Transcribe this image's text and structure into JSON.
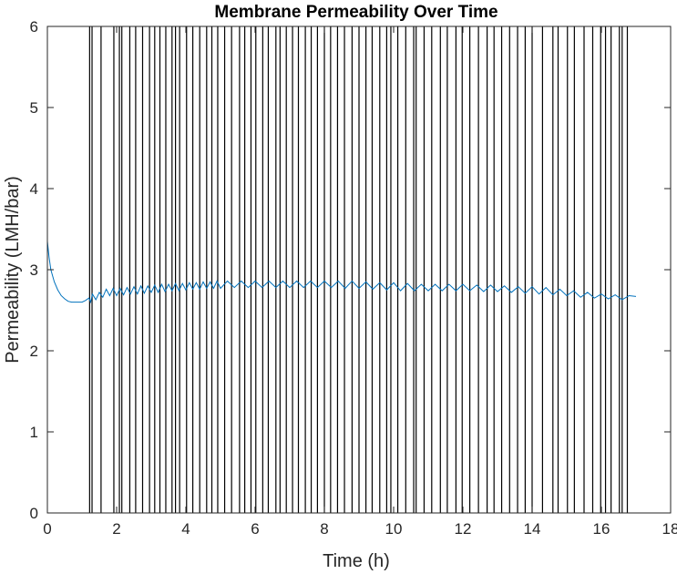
{
  "chart_data": {
    "type": "line",
    "title": "Membrane Permeability Over Time",
    "xlabel": "Time (h)",
    "ylabel": "Permeability (LMH/bar)",
    "xlim": [
      0,
      18
    ],
    "ylim": [
      0,
      6
    ],
    "xticks": [
      "0",
      "2",
      "4",
      "6",
      "8",
      "10",
      "12",
      "14",
      "16",
      "18"
    ],
    "yticks": [
      "0",
      "1",
      "2",
      "3",
      "4",
      "5",
      "6"
    ],
    "grid": false,
    "legend": "none",
    "series": [
      {
        "color": "#0072BD",
        "x": [
          0.0,
          0.05,
          0.1,
          0.2,
          0.3,
          0.4,
          0.5,
          0.6,
          0.7,
          0.8,
          0.9,
          1.0,
          1.1,
          1.2,
          1.25,
          1.3,
          1.4,
          1.5,
          1.6,
          1.7,
          1.8,
          1.9,
          2.0,
          2.1,
          2.2,
          2.3,
          2.4,
          2.5,
          2.6,
          2.7,
          2.8,
          2.9,
          3.0,
          3.1,
          3.2,
          3.3,
          3.4,
          3.5,
          3.6,
          3.7,
          3.8,
          3.9,
          4.0,
          4.1,
          4.2,
          4.3,
          4.4,
          4.5,
          4.6,
          4.7,
          4.8,
          4.9,
          5.0,
          5.2,
          5.4,
          5.6,
          5.8,
          6.0,
          6.2,
          6.4,
          6.6,
          6.8,
          7.0,
          7.2,
          7.4,
          7.6,
          7.8,
          8.0,
          8.2,
          8.4,
          8.6,
          8.8,
          9.0,
          9.2,
          9.4,
          9.6,
          9.8,
          10.0,
          10.2,
          10.4,
          10.6,
          10.8,
          11.0,
          11.2,
          11.4,
          11.6,
          11.8,
          12.0,
          12.2,
          12.4,
          12.6,
          12.8,
          13.0,
          13.2,
          13.4,
          13.6,
          13.8,
          14.0,
          14.2,
          14.4,
          14.6,
          14.8,
          15.0,
          15.2,
          15.4,
          15.6,
          15.8,
          16.0,
          16.2,
          16.4,
          16.6,
          16.8,
          17.0
        ],
        "y": [
          3.35,
          3.15,
          3.0,
          2.85,
          2.75,
          2.68,
          2.64,
          2.61,
          2.6,
          2.6,
          2.6,
          2.6,
          2.62,
          2.65,
          2.6,
          2.7,
          2.63,
          2.72,
          2.66,
          2.76,
          2.68,
          2.77,
          2.68,
          2.77,
          2.69,
          2.78,
          2.7,
          2.79,
          2.7,
          2.8,
          2.71,
          2.8,
          2.72,
          2.81,
          2.72,
          2.82,
          2.73,
          2.82,
          2.74,
          2.83,
          2.74,
          2.83,
          2.75,
          2.84,
          2.76,
          2.84,
          2.76,
          2.85,
          2.77,
          2.85,
          2.77,
          2.86,
          2.77,
          2.86,
          2.78,
          2.86,
          2.78,
          2.86,
          2.78,
          2.86,
          2.78,
          2.86,
          2.78,
          2.86,
          2.78,
          2.86,
          2.78,
          2.86,
          2.78,
          2.86,
          2.77,
          2.86,
          2.77,
          2.85,
          2.76,
          2.84,
          2.75,
          2.84,
          2.74,
          2.83,
          2.74,
          2.82,
          2.74,
          2.82,
          2.74,
          2.82,
          2.74,
          2.82,
          2.74,
          2.81,
          2.73,
          2.81,
          2.73,
          2.8,
          2.72,
          2.79,
          2.71,
          2.79,
          2.7,
          2.78,
          2.69,
          2.76,
          2.68,
          2.74,
          2.66,
          2.72,
          2.65,
          2.7,
          2.64,
          2.69,
          2.63,
          2.68,
          2.67
        ]
      }
    ],
    "vertical_lines_x": [
      1.22,
      1.29,
      1.55,
      1.92,
      2.08,
      2.15,
      2.38,
      2.55,
      2.75,
      2.95,
      3.1,
      3.25,
      3.42,
      3.6,
      3.7,
      3.82,
      4.02,
      4.2,
      4.4,
      4.6,
      4.75,
      4.92,
      5.12,
      5.32,
      5.55,
      5.7,
      5.88,
      6.02,
      6.22,
      6.38,
      6.6,
      6.72,
      6.9,
      7.08,
      7.25,
      7.45,
      7.62,
      7.8,
      8.0,
      8.18,
      8.38,
      8.58,
      8.8,
      9.0,
      9.2,
      9.38,
      9.6,
      9.8,
      9.92,
      10.12,
      10.35,
      10.58,
      10.65,
      10.88,
      11.1,
      11.35,
      11.55,
      11.8,
      11.98,
      12.2,
      12.45,
      12.7,
      12.9,
      13.12,
      13.35,
      13.58,
      13.8,
      14.0,
      14.3,
      14.6,
      14.75,
      15.02,
      15.22,
      15.5,
      15.75,
      15.98,
      16.12,
      16.28,
      16.52,
      16.6,
      16.75
    ]
  }
}
